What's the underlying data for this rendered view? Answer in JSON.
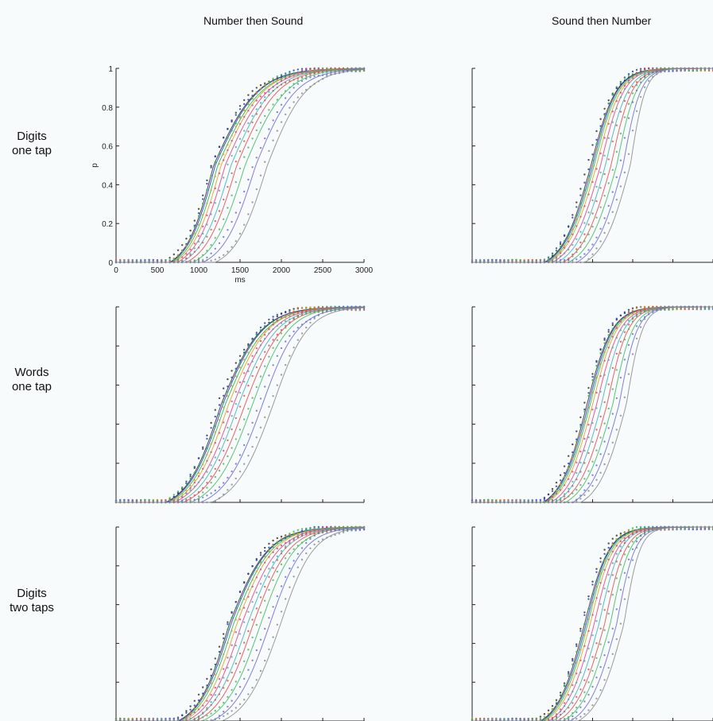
{
  "column_titles": [
    "Number then Sound",
    "Sound then Number"
  ],
  "row_labels": [
    {
      "line1": "Digits",
      "line2": "one tap"
    },
    {
      "line1": "Words",
      "line2": "one tap"
    },
    {
      "line1": "Digits",
      "line2": "two taps"
    }
  ],
  "curve_colors": [
    "#2a2a2a",
    "#1f3faa",
    "#2db34a",
    "#e0a020",
    "#e0408a",
    "#40b0b0",
    "#e84848",
    "#40b860",
    "#6a6ad8",
    "#8a8a8a"
  ],
  "chart_data": [
    {
      "type": "line",
      "panel": "Number then Sound / Digits one tap",
      "xlabel": "ms",
      "ylabel": "p",
      "xlim": [
        0,
        3000
      ],
      "ylim": [
        0,
        1
      ],
      "xticks": [
        0,
        500,
        1000,
        1500,
        2000,
        2500,
        3000
      ],
      "yticks": [
        0,
        0.2,
        0.4,
        0.6,
        0.8,
        1
      ],
      "xtick_labels": [
        "0",
        "500",
        "1000",
        "1500",
        "2000",
        "2500",
        "3000"
      ],
      "ytick_labels": [
        "0",
        "0.2",
        "0.4",
        "0.6",
        "0.8",
        "1"
      ],
      "series": [
        {
          "onset": 650,
          "median": 1180,
          "end": 2400
        },
        {
          "onset": 660,
          "median": 1200,
          "end": 2400
        },
        {
          "onset": 680,
          "median": 1230,
          "end": 2450
        },
        {
          "onset": 700,
          "median": 1270,
          "end": 2450
        },
        {
          "onset": 740,
          "median": 1320,
          "end": 2500
        },
        {
          "onset": 790,
          "median": 1390,
          "end": 2550
        },
        {
          "onset": 850,
          "median": 1460,
          "end": 2600
        },
        {
          "onset": 930,
          "median": 1560,
          "end": 2700
        },
        {
          "onset": 1050,
          "median": 1690,
          "end": 2800
        },
        {
          "onset": 1200,
          "median": 1830,
          "end": 2900
        }
      ]
    },
    {
      "type": "line",
      "panel": "Sound then Number / Digits one tap",
      "series": [
        {
          "onset": 900,
          "median": 1480,
          "end": 2200
        },
        {
          "onset": 910,
          "median": 1500,
          "end": 2200
        },
        {
          "onset": 930,
          "median": 1520,
          "end": 2220
        },
        {
          "onset": 950,
          "median": 1550,
          "end": 2240
        },
        {
          "onset": 1000,
          "median": 1600,
          "end": 2260
        },
        {
          "onset": 1060,
          "median": 1660,
          "end": 2300
        },
        {
          "onset": 1130,
          "median": 1730,
          "end": 2330
        },
        {
          "onset": 1200,
          "median": 1800,
          "end": 2360
        },
        {
          "onset": 1300,
          "median": 1880,
          "end": 2380
        },
        {
          "onset": 1400,
          "median": 1970,
          "end": 2400
        }
      ]
    },
    {
      "type": "line",
      "panel": "Number then Sound / Words one tap",
      "series": [
        {
          "onset": 600,
          "median": 1270,
          "end": 2400
        },
        {
          "onset": 610,
          "median": 1290,
          "end": 2400
        },
        {
          "onset": 630,
          "median": 1320,
          "end": 2450
        },
        {
          "onset": 660,
          "median": 1360,
          "end": 2450
        },
        {
          "onset": 700,
          "median": 1420,
          "end": 2500
        },
        {
          "onset": 750,
          "median": 1480,
          "end": 2550
        },
        {
          "onset": 810,
          "median": 1560,
          "end": 2600
        },
        {
          "onset": 900,
          "median": 1650,
          "end": 2650
        },
        {
          "onset": 1020,
          "median": 1770,
          "end": 2750
        },
        {
          "onset": 1150,
          "median": 1900,
          "end": 2850
        }
      ]
    },
    {
      "type": "line",
      "panel": "Sound then Number / Words one tap",
      "series": [
        {
          "onset": 880,
          "median": 1430,
          "end": 2150
        },
        {
          "onset": 890,
          "median": 1450,
          "end": 2150
        },
        {
          "onset": 910,
          "median": 1470,
          "end": 2170
        },
        {
          "onset": 930,
          "median": 1500,
          "end": 2190
        },
        {
          "onset": 980,
          "median": 1550,
          "end": 2220
        },
        {
          "onset": 1030,
          "median": 1610,
          "end": 2250
        },
        {
          "onset": 1090,
          "median": 1680,
          "end": 2280
        },
        {
          "onset": 1160,
          "median": 1750,
          "end": 2320
        },
        {
          "onset": 1250,
          "median": 1830,
          "end": 2350
        },
        {
          "onset": 1350,
          "median": 1920,
          "end": 2380
        }
      ]
    },
    {
      "type": "line",
      "panel": "Number then Sound / Digits two taps",
      "series": [
        {
          "onset": 750,
          "median": 1370,
          "end": 2450
        },
        {
          "onset": 760,
          "median": 1390,
          "end": 2450
        },
        {
          "onset": 780,
          "median": 1420,
          "end": 2480
        },
        {
          "onset": 810,
          "median": 1460,
          "end": 2500
        },
        {
          "onset": 850,
          "median": 1520,
          "end": 2550
        },
        {
          "onset": 900,
          "median": 1590,
          "end": 2600
        },
        {
          "onset": 960,
          "median": 1660,
          "end": 2650
        },
        {
          "onset": 1040,
          "median": 1750,
          "end": 2700
        },
        {
          "onset": 1150,
          "median": 1860,
          "end": 2800
        },
        {
          "onset": 1280,
          "median": 1990,
          "end": 2900
        }
      ]
    },
    {
      "type": "line",
      "panel": "Sound then Number / Digits two taps",
      "series": [
        {
          "onset": 850,
          "median": 1400,
          "end": 2100
        },
        {
          "onset": 860,
          "median": 1420,
          "end": 2100
        },
        {
          "onset": 880,
          "median": 1440,
          "end": 2120
        },
        {
          "onset": 900,
          "median": 1470,
          "end": 2140
        },
        {
          "onset": 950,
          "median": 1520,
          "end": 2170
        },
        {
          "onset": 1000,
          "median": 1580,
          "end": 2200
        },
        {
          "onset": 1060,
          "median": 1650,
          "end": 2240
        },
        {
          "onset": 1130,
          "median": 1720,
          "end": 2280
        },
        {
          "onset": 1220,
          "median": 1800,
          "end": 2320
        },
        {
          "onset": 1320,
          "median": 1890,
          "end": 2350
        }
      ]
    }
  ]
}
